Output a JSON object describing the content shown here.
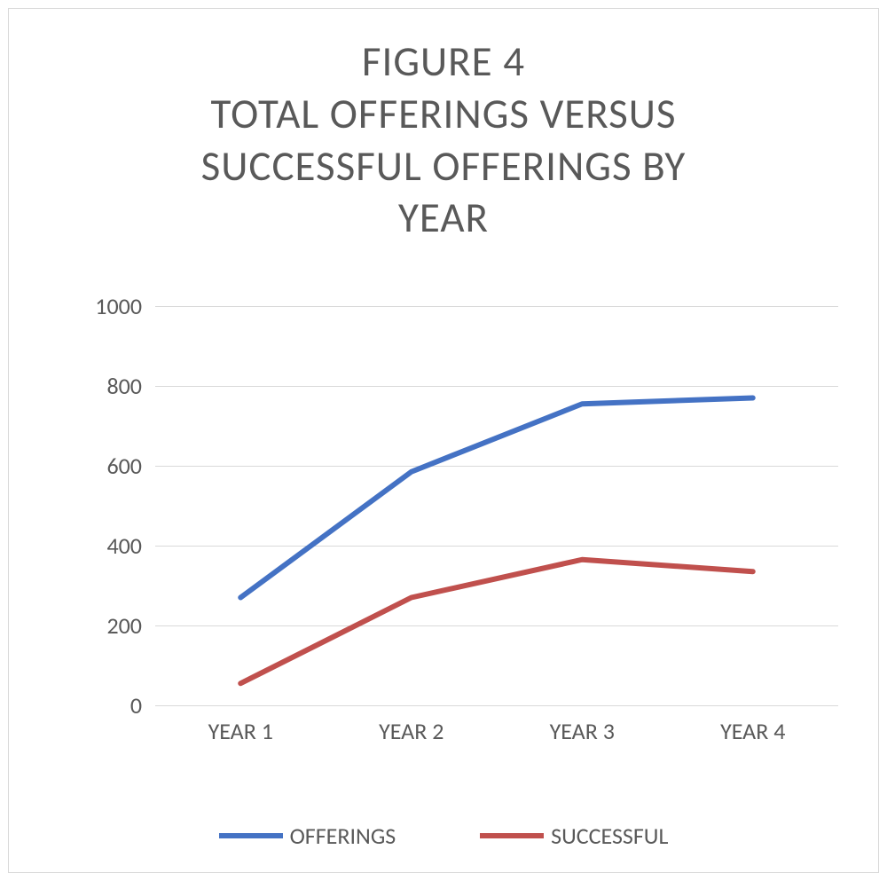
{
  "chart": {
    "type": "line",
    "title_lines": [
      "FIGURE 4",
      "TOTAL OFFERINGS VERSUS",
      "SUCCESSFUL OFFERINGS BY",
      "YEAR"
    ],
    "title_fontsize": 47,
    "title_color": "#595959",
    "background_color": "#ffffff",
    "border_color": "#d9d9d9",
    "grid_color": "#d9d9d9",
    "axis_label_color": "#595959",
    "axis_fontsize": 26,
    "ylim": [
      0,
      1000
    ],
    "ytick_step": 200,
    "yticks": [
      0,
      200,
      400,
      600,
      800,
      1000
    ],
    "categories": [
      "YEAR 1",
      "YEAR 2",
      "YEAR 3",
      "YEAR 4"
    ],
    "series": [
      {
        "name": "OFFERINGS",
        "color": "#4472c4",
        "line_width": 6,
        "values": [
          270,
          585,
          755,
          770
        ]
      },
      {
        "name": "SUCCESSFUL",
        "color": "#c0504d",
        "line_width": 6,
        "values": [
          55,
          270,
          365,
          335
        ]
      }
    ],
    "legend_position": "bottom"
  }
}
